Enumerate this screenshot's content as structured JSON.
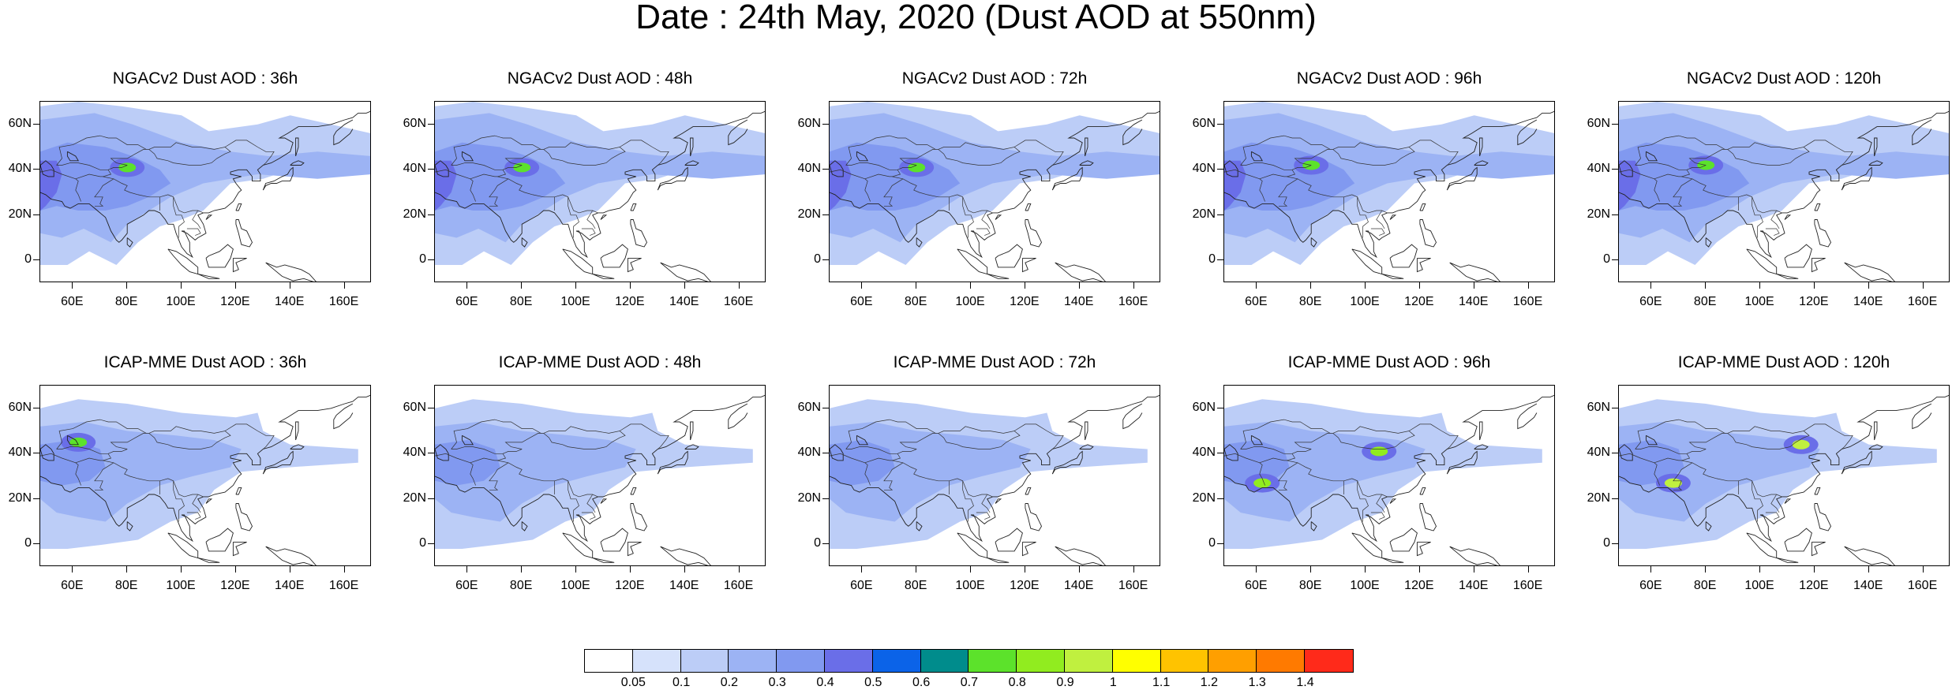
{
  "title": "Date : 24th May, 2020 (Dust AOD at 550nm)",
  "x_ticks": [
    "60E",
    "80E",
    "100E",
    "120E",
    "140E",
    "160E"
  ],
  "y_ticks": [
    "60N",
    "40N",
    "20N",
    "0"
  ],
  "map_extent": {
    "lon": [
      48,
      170
    ],
    "lat": [
      -10,
      70
    ]
  },
  "panels": [
    {
      "title": "NGACv2 Dust AOD : 36h",
      "hotspots": [
        {
          "lon": 80,
          "lat": 41,
          "level": 0.7
        }
      ]
    },
    {
      "title": "NGACv2 Dust AOD : 48h",
      "hotspots": [
        {
          "lon": 80,
          "lat": 41,
          "level": 0.7
        }
      ]
    },
    {
      "title": "NGACv2 Dust AOD : 72h",
      "hotspots": [
        {
          "lon": 80,
          "lat": 41,
          "level": 0.7
        }
      ]
    },
    {
      "title": "NGACv2 Dust AOD : 96h",
      "hotspots": [
        {
          "lon": 80,
          "lat": 42,
          "level": 0.7
        }
      ]
    },
    {
      "title": "NGACv2 Dust AOD : 120h",
      "hotspots": [
        {
          "lon": 80,
          "lat": 42,
          "level": 0.7
        }
      ]
    },
    {
      "title": "ICAP-MME Dust AOD : 36h",
      "hotspots": [
        {
          "lon": 62,
          "lat": 45,
          "level": 0.7
        }
      ]
    },
    {
      "title": "ICAP-MME Dust AOD : 48h",
      "hotspots": []
    },
    {
      "title": "ICAP-MME Dust AOD : 72h",
      "hotspots": []
    },
    {
      "title": "ICAP-MME Dust AOD : 96h",
      "hotspots": [
        {
          "lon": 105,
          "lat": 41,
          "level": 0.8
        },
        {
          "lon": 62,
          "lat": 27,
          "level": 0.8
        }
      ]
    },
    {
      "title": "ICAP-MME Dust AOD : 120h",
      "hotspots": [
        {
          "lon": 115,
          "lat": 44,
          "level": 0.9
        },
        {
          "lon": 68,
          "lat": 27,
          "level": 0.9
        }
      ]
    }
  ],
  "colorbar": {
    "colors": [
      "#ffffff",
      "#d6e2fb",
      "#bccdf7",
      "#9cb3f4",
      "#8199f0",
      "#6a6ee8",
      "#0b63e8",
      "#008c8c",
      "#5ce22b",
      "#91ec1f",
      "#c0f03f",
      "#ffff00",
      "#ffc300",
      "#ff9f00",
      "#ff7a00",
      "#ff2a1a"
    ],
    "labels": [
      "0.05",
      "0.1",
      "0.2",
      "0.3",
      "0.4",
      "0.5",
      "0.6",
      "0.7",
      "0.8",
      "0.9",
      "1",
      "1.1",
      "1.2",
      "1.3",
      "1.4"
    ]
  }
}
